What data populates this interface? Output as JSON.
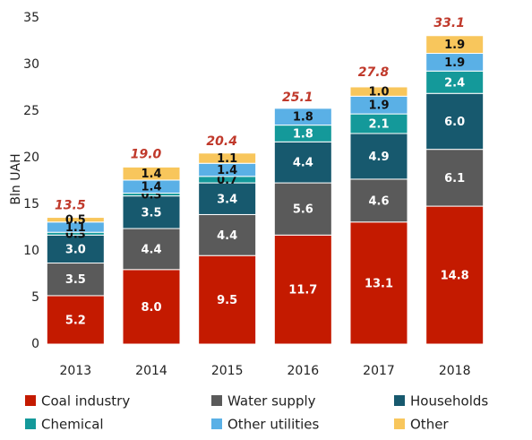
{
  "chart_data": {
    "type": "stacked_bar",
    "y_label": "Bln UAH",
    "categories": [
      "2013",
      "2014",
      "2015",
      "2016",
      "2017",
      "2018"
    ],
    "ylim": [
      0,
      35
    ],
    "yticks": [
      0,
      5,
      10,
      15,
      20,
      25,
      30,
      35
    ],
    "grid": false,
    "legend": "bottom",
    "series": [
      {
        "name": "Coal industry",
        "color": "#c41a00",
        "values": [
          5.2,
          8.0,
          9.5,
          11.7,
          13.1,
          14.8
        ],
        "value_labels": [
          "5.2",
          "8.0",
          "9.5",
          "11.7",
          "13.1",
          "14.8"
        ]
      },
      {
        "name": "Water supply",
        "color": "#5a5a5a",
        "values": [
          3.5,
          4.4,
          4.4,
          5.6,
          4.6,
          6.1
        ],
        "value_labels": [
          "3.5",
          "4.4",
          "4.4",
          "5.6",
          "4.6",
          "6.1"
        ]
      },
      {
        "name": "Households",
        "color": "#17596e",
        "values": [
          3.0,
          3.5,
          3.4,
          4.4,
          4.9,
          6.0
        ],
        "value_labels": [
          "3.0",
          "3.5",
          "3.4",
          "4.4",
          "4.9",
          "6.0"
        ]
      },
      {
        "name": "Chemical",
        "color": "#14999a",
        "values": [
          0.3,
          0.3,
          0.7,
          1.8,
          2.1,
          2.4
        ],
        "value_labels": [
          "0.3",
          "0.3",
          "0.7",
          "1.8",
          "2.1",
          "2.4"
        ]
      },
      {
        "name": "Other utilities",
        "color": "#5ab0e6",
        "values": [
          1.1,
          1.4,
          1.4,
          1.8,
          1.9,
          1.9
        ],
        "value_labels": [
          "1.1",
          "1.4",
          "1.4",
          "1.8",
          "1.9",
          "1.9"
        ]
      },
      {
        "name": "Other",
        "color": "#f8c65c",
        "values": [
          0.5,
          1.4,
          1.1,
          null,
          1.0,
          1.9
        ],
        "value_labels": [
          "0.5",
          "1.4",
          "1.1",
          null,
          "1.0",
          "1.9"
        ]
      }
    ],
    "totals": [
      13.5,
      19.0,
      20.4,
      25.1,
      27.8,
      33.1
    ],
    "total_labels": [
      "13.5",
      "19.0",
      "20.4",
      "25.1",
      "27.8",
      "33.1"
    ]
  }
}
